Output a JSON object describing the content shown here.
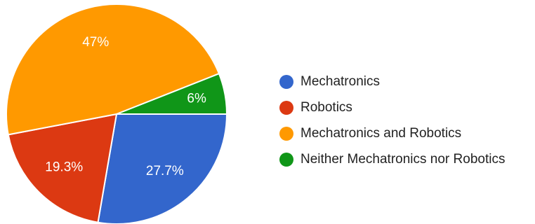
{
  "chart_data": {
    "type": "pie",
    "slices": [
      {
        "label": "Mechatronics",
        "value": 27.7,
        "display": "27.7%",
        "color": "#3366cc"
      },
      {
        "label": "Robotics",
        "value": 19.3,
        "display": "19.3%",
        "color": "#dc3912"
      },
      {
        "label": "Mechatronics and Robotics",
        "value": 47,
        "display": "47%",
        "color": "#ff9900"
      },
      {
        "label": "Neither Mechatronics nor Robotics",
        "value": 6,
        "display": "6%",
        "color": "#109618"
      }
    ],
    "legend_position": "right"
  }
}
